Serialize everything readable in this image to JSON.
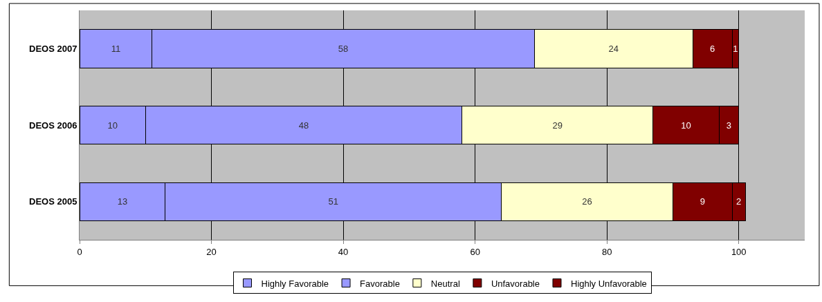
{
  "chart_data": {
    "type": "bar",
    "orientation": "horizontal",
    "stacked": true,
    "data_labels": true,
    "categories": [
      "DEOS 2007",
      "DEOS 2006",
      "DEOS 2005"
    ],
    "series": [
      {
        "name": "Highly Favorable",
        "color": "#9999ff",
        "values": [
          11,
          10,
          13
        ]
      },
      {
        "name": "Favorable",
        "color": "#9999ff",
        "values": [
          58,
          48,
          51
        ]
      },
      {
        "name": "Neutral",
        "color": "#ffffcc",
        "values": [
          24,
          29,
          26
        ]
      },
      {
        "name": "Unfavorable",
        "color": "#800000",
        "values": [
          6,
          10,
          9
        ]
      },
      {
        "name": "Highly Unfavorable",
        "color": "#800000",
        "values": [
          1,
          3,
          2
        ]
      }
    ],
    "xlim": [
      0,
      110
    ],
    "xticks": [
      0,
      20,
      40,
      60,
      80,
      100
    ],
    "grid": "x",
    "legend": "bottom"
  }
}
